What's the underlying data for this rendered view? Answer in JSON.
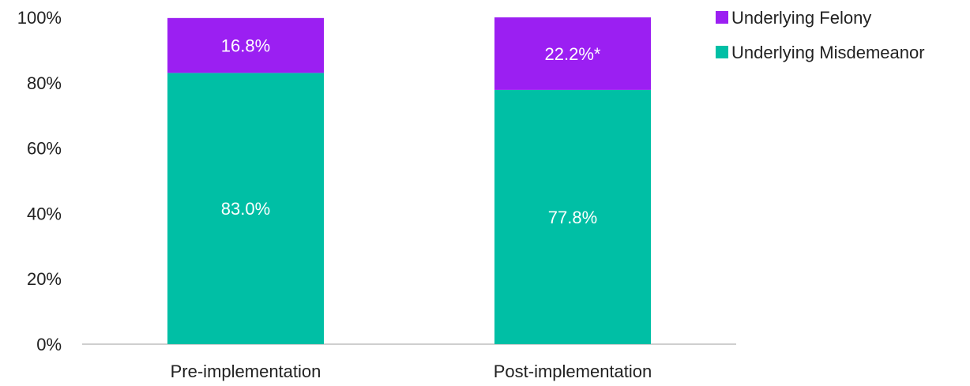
{
  "chart_data": {
    "type": "bar",
    "stacked": true,
    "categories": [
      "Pre-implementation",
      "Post-implementation"
    ],
    "series": [
      {
        "name": "Underlying Misdemeanor",
        "values": [
          83.0,
          77.8
        ],
        "labels": [
          "83.0%",
          "77.8%"
        ],
        "color": "#00bfa5"
      },
      {
        "name": "Underlying Felony",
        "values": [
          16.8,
          22.2
        ],
        "labels": [
          "16.8%",
          "22.2%*"
        ],
        "color": "#9b1ff2"
      }
    ],
    "y_ticks": [
      "0%",
      "20%",
      "40%",
      "60%",
      "80%",
      "100%"
    ],
    "ylim": [
      0,
      100
    ],
    "grid": false,
    "legend_position": "top-right",
    "legend_order": [
      "Underlying Felony",
      "Underlying Misdemeanor"
    ],
    "axis_color": "#bfbfbf"
  }
}
